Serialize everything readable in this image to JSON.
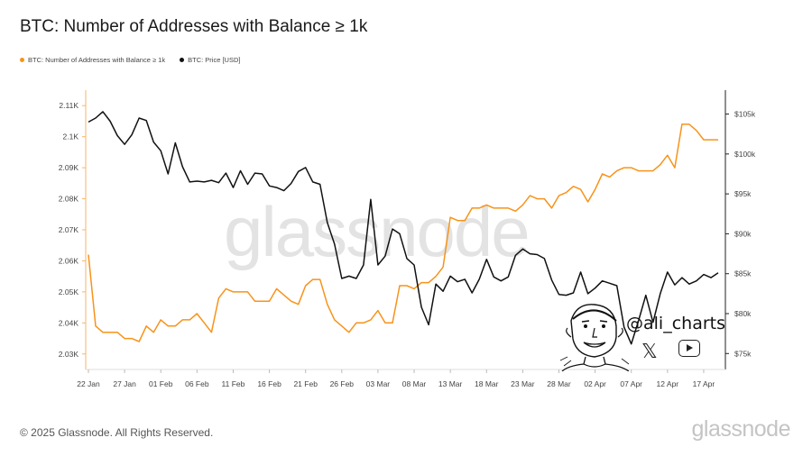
{
  "chart_data": {
    "type": "line",
    "title": "BTC: Number of Addresses with Balance ≥ 1k",
    "legend": [
      "BTC: Number of Addresses with Balance ≥ 1k",
      "BTC: Price [USD]"
    ],
    "colors": {
      "addresses": "#f7931a",
      "price": "#111111"
    },
    "x_ticks": [
      "22 Jan",
      "27 Jan",
      "01 Feb",
      "06 Feb",
      "11 Feb",
      "16 Feb",
      "21 Feb",
      "26 Feb",
      "03 Mar",
      "08 Mar",
      "13 Mar",
      "18 Mar",
      "23 Mar",
      "28 Mar",
      "02 Apr",
      "07 Apr",
      "12 Apr",
      "17 Apr"
    ],
    "y_left_ticks": [
      "2.03K",
      "2.04K",
      "2.05K",
      "2.06K",
      "2.07K",
      "2.08K",
      "2.09K",
      "2.1K",
      "2.11K"
    ],
    "y_right_ticks": [
      "$75k",
      "$80k",
      "$85k",
      "$90k",
      "$95k",
      "$100k",
      "$105k"
    ],
    "y_left_range": [
      2025,
      2115
    ],
    "y_right_range": [
      73000,
      108000
    ],
    "grid": false,
    "legend_position": "top-left",
    "series": [
      {
        "name": "BTC: Number of Addresses with Balance ≥ 1k",
        "axis": "left",
        "x": [
          "2025-01-22",
          "2025-01-23",
          "2025-01-24",
          "2025-01-25",
          "2025-01-26",
          "2025-01-27",
          "2025-01-28",
          "2025-01-29",
          "2025-01-30",
          "2025-01-31",
          "2025-02-01",
          "2025-02-02",
          "2025-02-03",
          "2025-02-04",
          "2025-02-05",
          "2025-02-06",
          "2025-02-07",
          "2025-02-08",
          "2025-02-09",
          "2025-02-10",
          "2025-02-11",
          "2025-02-12",
          "2025-02-13",
          "2025-02-14",
          "2025-02-15",
          "2025-02-16",
          "2025-02-17",
          "2025-02-18",
          "2025-02-19",
          "2025-02-20",
          "2025-02-21",
          "2025-02-22",
          "2025-02-23",
          "2025-02-24",
          "2025-02-25",
          "2025-02-26",
          "2025-02-27",
          "2025-02-28",
          "2025-03-01",
          "2025-03-02",
          "2025-03-03",
          "2025-03-04",
          "2025-03-05",
          "2025-03-06",
          "2025-03-07",
          "2025-03-08",
          "2025-03-09",
          "2025-03-10",
          "2025-03-11",
          "2025-03-12",
          "2025-03-13",
          "2025-03-14",
          "2025-03-15",
          "2025-03-16",
          "2025-03-17",
          "2025-03-18",
          "2025-03-19",
          "2025-03-20",
          "2025-03-21",
          "2025-03-22",
          "2025-03-23",
          "2025-03-24",
          "2025-03-25",
          "2025-03-26",
          "2025-03-27",
          "2025-03-28",
          "2025-03-29",
          "2025-03-30",
          "2025-03-31",
          "2025-04-01",
          "2025-04-02",
          "2025-04-03",
          "2025-04-04",
          "2025-04-05",
          "2025-04-06",
          "2025-04-07",
          "2025-04-08",
          "2025-04-09",
          "2025-04-10",
          "2025-04-11",
          "2025-04-12",
          "2025-04-13",
          "2025-04-14",
          "2025-04-15",
          "2025-04-16",
          "2025-04-17",
          "2025-04-18",
          "2025-04-19"
        ],
        "y": [
          2062,
          2039,
          2037,
          2037,
          2037,
          2035,
          2035,
          2034,
          2039,
          2037,
          2041,
          2039,
          2039,
          2041,
          2041,
          2043,
          2040,
          2037,
          2048,
          2051,
          2050,
          2050,
          2050,
          2047,
          2047,
          2047,
          2051,
          2049,
          2047,
          2046,
          2052,
          2054,
          2054,
          2046,
          2041,
          2039,
          2037,
          2040,
          2040,
          2041,
          2044,
          2040,
          2040,
          2052,
          2052,
          2051,
          2053,
          2053,
          2055,
          2058,
          2074,
          2073,
          2073,
          2077,
          2077,
          2078,
          2077,
          2077,
          2077,
          2076,
          2078,
          2081,
          2080,
          2080,
          2077,
          2081,
          2082,
          2084,
          2083,
          2079,
          2083,
          2088,
          2087,
          2089,
          2090,
          2090,
          2089,
          2089,
          2089,
          2091,
          2094,
          2090,
          2104,
          2104,
          2102,
          2099,
          2099,
          2099
        ]
      },
      {
        "name": "BTC: Price [USD]",
        "axis": "right",
        "x": [
          "2025-01-22",
          "2025-01-23",
          "2025-01-24",
          "2025-01-25",
          "2025-01-26",
          "2025-01-27",
          "2025-01-28",
          "2025-01-29",
          "2025-01-30",
          "2025-01-31",
          "2025-02-01",
          "2025-02-02",
          "2025-02-03",
          "2025-02-04",
          "2025-02-05",
          "2025-02-06",
          "2025-02-07",
          "2025-02-08",
          "2025-02-09",
          "2025-02-10",
          "2025-02-11",
          "2025-02-12",
          "2025-02-13",
          "2025-02-14",
          "2025-02-15",
          "2025-02-16",
          "2025-02-17",
          "2025-02-18",
          "2025-02-19",
          "2025-02-20",
          "2025-02-21",
          "2025-02-22",
          "2025-02-23",
          "2025-02-24",
          "2025-02-25",
          "2025-02-26",
          "2025-02-27",
          "2025-02-28",
          "2025-03-01",
          "2025-03-02",
          "2025-03-03",
          "2025-03-04",
          "2025-03-05",
          "2025-03-06",
          "2025-03-07",
          "2025-03-08",
          "2025-03-09",
          "2025-03-10",
          "2025-03-11",
          "2025-03-12",
          "2025-03-13",
          "2025-03-14",
          "2025-03-15",
          "2025-03-16",
          "2025-03-17",
          "2025-03-18",
          "2025-03-19",
          "2025-03-20",
          "2025-03-21",
          "2025-03-22",
          "2025-03-23",
          "2025-03-24",
          "2025-03-25",
          "2025-03-26",
          "2025-03-27",
          "2025-03-28",
          "2025-03-29",
          "2025-03-30",
          "2025-03-31",
          "2025-04-01",
          "2025-04-02",
          "2025-04-03",
          "2025-04-04",
          "2025-04-05",
          "2025-04-06",
          "2025-04-07",
          "2025-04-08",
          "2025-04-09",
          "2025-04-10",
          "2025-04-11",
          "2025-04-12",
          "2025-04-13",
          "2025-04-14",
          "2025-04-15",
          "2025-04-16",
          "2025-04-17",
          "2025-04-18",
          "2025-04-19"
        ],
        "y": [
          104000,
          104500,
          105300,
          104100,
          102300,
          101200,
          102400,
          104500,
          104200,
          101500,
          100400,
          97500,
          101400,
          98400,
          96500,
          96600,
          96500,
          96700,
          96400,
          97600,
          95800,
          97900,
          96200,
          97600,
          97500,
          96000,
          95800,
          95400,
          96300,
          97800,
          98300,
          96500,
          96200,
          91400,
          88700,
          84400,
          84700,
          84400,
          86100,
          94300,
          86100,
          87200,
          90600,
          90000,
          86900,
          86100,
          80800,
          78600,
          83700,
          82800,
          84700,
          84000,
          84300,
          82600,
          84300,
          86800,
          84600,
          84100,
          84600,
          87300,
          88100,
          87500,
          87400,
          86900,
          84200,
          82400,
          82300,
          82600,
          85200,
          82500,
          83200,
          84100,
          83800,
          83500,
          78300,
          76200,
          79100,
          82300,
          78900,
          82500,
          85200,
          83600,
          84500,
          83700,
          84100,
          84900,
          84500,
          85100
        ]
      }
    ]
  },
  "chart": {
    "title": "BTC: Number of Addresses with Balance ≥ 1k",
    "legend_addresses": "BTC: Number of Addresses with Balance ≥ 1k",
    "legend_price": "BTC: Price [USD]"
  },
  "watermark": "glassnode",
  "footer": {
    "copyright": "© 2025 Glassnode. All Rights Reserved.",
    "logo": "glassnode"
  },
  "overlay": {
    "handle": "@ali_charts",
    "icons": [
      "avatar-sketch",
      "x-logo-icon",
      "youtube-icon"
    ]
  }
}
